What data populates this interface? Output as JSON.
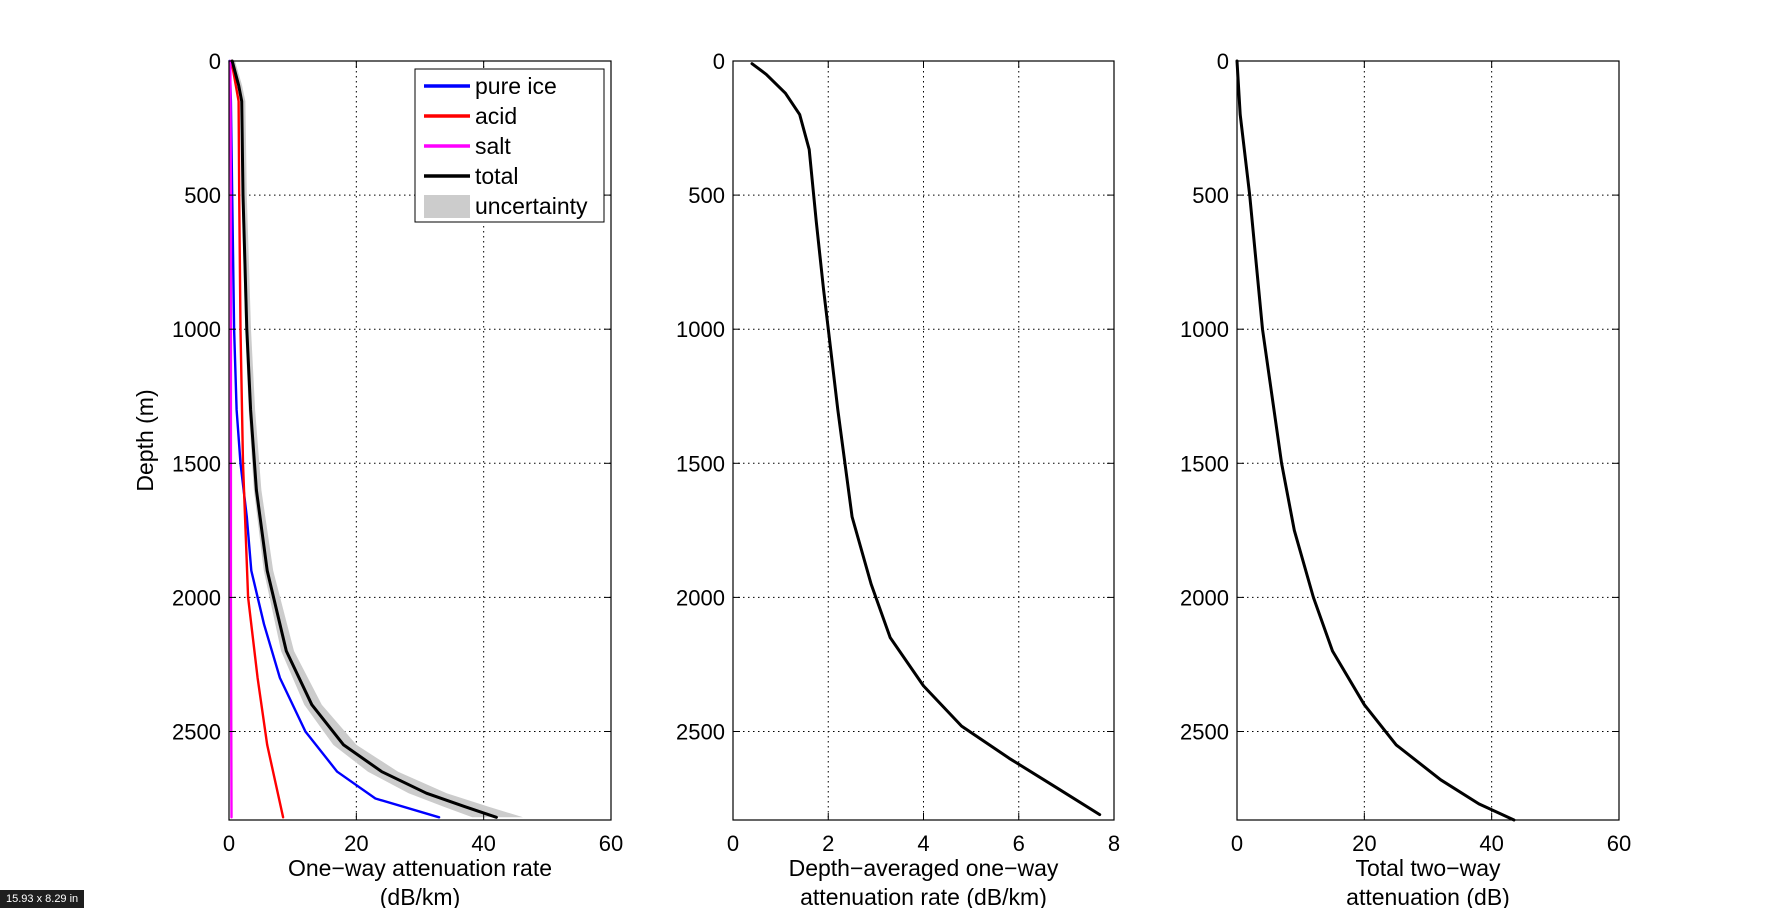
{
  "figure_size_label": "15.93 x 8.29 in",
  "colors": {
    "pure_ice": "#0000ff",
    "acid": "#ff0000",
    "salt": "#ff00ff",
    "total": "#000000",
    "uncertainty": "#cccccc"
  },
  "chart_data": [
    {
      "type": "line",
      "xlabel": [
        "One−way attenuation rate",
        "(dB/km)"
      ],
      "ylabel": "Depth (m)",
      "xlim": [
        0,
        60
      ],
      "ylim": [
        2830,
        0
      ],
      "y_reversed": true,
      "grid": true,
      "xticks": [
        "0",
        "20",
        "40",
        "60"
      ],
      "yticks": [
        "0",
        "500",
        "1000",
        "1500",
        "2000",
        "2500"
      ],
      "legend_position": "top-right",
      "legend": [
        "pure ice",
        "acid",
        "salt",
        "total",
        "uncertainty"
      ],
      "series": [
        {
          "name": "pure ice",
          "color": "#0000ff",
          "points": [
            [
              0.1,
              0
            ],
            [
              0.3,
              150
            ],
            [
              0.5,
              500
            ],
            [
              0.8,
              1000
            ],
            [
              1.2,
              1300
            ],
            [
              1.8,
              1500
            ],
            [
              2.8,
              1700
            ],
            [
              3.5,
              1900
            ],
            [
              5.5,
              2100
            ],
            [
              8,
              2300
            ],
            [
              12,
              2500
            ],
            [
              17,
              2650
            ],
            [
              23,
              2750
            ],
            [
              33,
              2820
            ]
          ]
        },
        {
          "name": "acid",
          "color": "#ff0000",
          "points": [
            [
              0.4,
              0
            ],
            [
              1.5,
              150
            ],
            [
              1.6,
              500
            ],
            [
              1.8,
              1000
            ],
            [
              2.2,
              1500
            ],
            [
              3,
              2000
            ],
            [
              4.5,
              2300
            ],
            [
              6,
              2550
            ],
            [
              8.5,
              2820
            ]
          ]
        },
        {
          "name": "salt",
          "color": "#ff00ff",
          "points": [
            [
              0.2,
              0
            ],
            [
              0.3,
              500
            ],
            [
              0.3,
              1000
            ],
            [
              0.3,
              2000
            ],
            [
              0.4,
              2820
            ]
          ]
        },
        {
          "name": "total",
          "color": "#000000",
          "points": [
            [
              0.5,
              0
            ],
            [
              1.5,
              90
            ],
            [
              2,
              150
            ],
            [
              2.2,
              500
            ],
            [
              2.8,
              1000
            ],
            [
              3.4,
              1300
            ],
            [
              4.3,
              1600
            ],
            [
              6,
              1900
            ],
            [
              9,
              2200
            ],
            [
              13,
              2400
            ],
            [
              18,
              2550
            ],
            [
              24,
              2650
            ],
            [
              31,
              2730
            ],
            [
              37,
              2780
            ],
            [
              42,
              2820
            ]
          ]
        },
        {
          "name": "uncertainty",
          "color": "#cccccc",
          "band_halfwidth_fraction": 0.09
        }
      ]
    },
    {
      "type": "line",
      "xlabel": [
        "Depth−averaged one−way",
        "attenuation rate (dB/km)"
      ],
      "ylabel": "",
      "xlim": [
        0,
        8
      ],
      "ylim": [
        2830,
        0
      ],
      "y_reversed": true,
      "grid": true,
      "xticks": [
        "0",
        "2",
        "4",
        "6",
        "8"
      ],
      "yticks": [
        "0",
        "500",
        "1000",
        "1500",
        "2000",
        "2500"
      ],
      "series": [
        {
          "name": "",
          "color": "#000000",
          "points": [
            [
              0.4,
              10
            ],
            [
              0.7,
              50
            ],
            [
              1.1,
              120
            ],
            [
              1.4,
              200
            ],
            [
              1.6,
              330
            ],
            [
              1.75,
              600
            ],
            [
              1.9,
              850
            ],
            [
              2,
              1000
            ],
            [
              2.2,
              1300
            ],
            [
              2.5,
              1700
            ],
            [
              2.9,
              1950
            ],
            [
              3.3,
              2150
            ],
            [
              4,
              2330
            ],
            [
              4.8,
              2480
            ],
            [
              5.8,
              2600
            ],
            [
              6.8,
              2710
            ],
            [
              7.7,
              2810
            ]
          ]
        }
      ]
    },
    {
      "type": "line",
      "xlabel": [
        "Total two−way",
        "attenuation (dB)"
      ],
      "ylabel": "",
      "xlim": [
        0,
        60
      ],
      "ylim": [
        2830,
        0
      ],
      "y_reversed": true,
      "grid": true,
      "xticks": [
        "0",
        "20",
        "40",
        "60"
      ],
      "yticks": [
        "0",
        "500",
        "1000",
        "1500",
        "2000",
        "2500"
      ],
      "series": [
        {
          "name": "",
          "color": "#000000",
          "points": [
            [
              0,
              0
            ],
            [
              0.5,
              200
            ],
            [
              2,
              500
            ],
            [
              4,
              1000
            ],
            [
              7,
              1500
            ],
            [
              9,
              1750
            ],
            [
              12,
              2000
            ],
            [
              15,
              2200
            ],
            [
              20,
              2400
            ],
            [
              25,
              2550
            ],
            [
              32,
              2680
            ],
            [
              38,
              2770
            ],
            [
              43.5,
              2830
            ]
          ]
        }
      ]
    }
  ]
}
